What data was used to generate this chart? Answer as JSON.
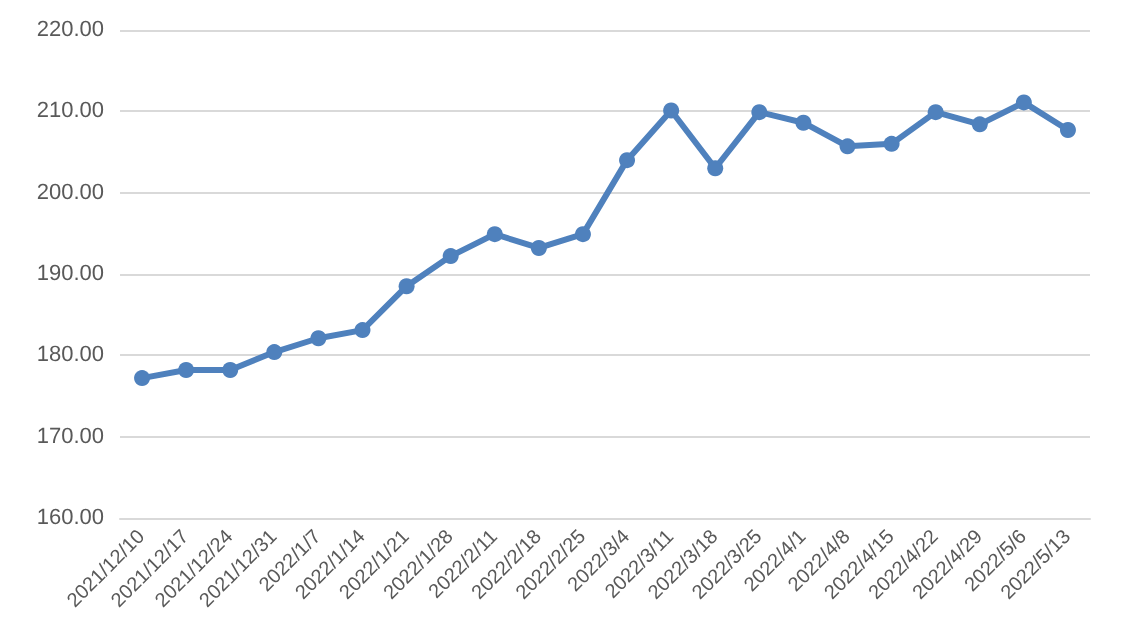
{
  "chart_data": {
    "type": "line",
    "categories": [
      "2021/12/10",
      "2021/12/17",
      "2021/12/24",
      "2021/12/31",
      "2022/1/7",
      "2022/1/14",
      "2022/1/21",
      "2022/1/28",
      "2022/2/11",
      "2022/2/18",
      "2022/2/25",
      "2022/3/4",
      "2022/3/11",
      "2022/3/18",
      "2022/3/25",
      "2022/4/1",
      "2022/4/8",
      "2022/4/15",
      "2022/4/22",
      "2022/4/29",
      "2022/5/6",
      "2022/5/13"
    ],
    "series": [
      {
        "color": "#4f81bd",
        "values": [
          177.2,
          178.2,
          178.2,
          180.4,
          182.1,
          183.1,
          188.5,
          192.2,
          194.9,
          193.2,
          194.9,
          204.0,
          210.1,
          203.0,
          209.9,
          208.6,
          205.7,
          206.0,
          209.9,
          208.4,
          211.1,
          207.7
        ]
      }
    ],
    "ylim": [
      160,
      220
    ],
    "yticks": [
      {
        "value": 160,
        "label": "160.00"
      },
      {
        "value": 170,
        "label": "170.00"
      },
      {
        "value": 180,
        "label": "180.00"
      },
      {
        "value": 190,
        "label": "190.00"
      },
      {
        "value": 200,
        "label": "200.00"
      },
      {
        "value": 210,
        "label": "210.00"
      },
      {
        "value": 220,
        "label": "220.00"
      }
    ],
    "grid": "y",
    "marker": "circle",
    "line_style": "solid"
  }
}
